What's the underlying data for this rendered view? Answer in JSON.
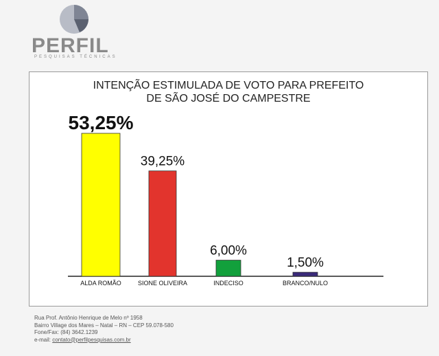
{
  "brand": {
    "name": "PERFIL",
    "tagline": "PESQUISAS TÉCNICAS"
  },
  "chart_data": {
    "type": "bar",
    "title_lines": [
      "INTENÇÃO ESTIMULADA DE VOTO PARA PREFEITO",
      "DE SÃO JOSÉ DO CAMPESTRE"
    ],
    "categories": [
      "ALDA ROMÃO",
      "SIONE OLIVEIRA",
      "INDECISO",
      "BRANCO/NULO"
    ],
    "values": [
      53.25,
      39.25,
      6.0,
      1.5
    ],
    "value_labels": [
      "53,25%",
      "39,25%",
      "6,00%",
      "1,50%"
    ],
    "colors": [
      "#ffff00",
      "#e2342d",
      "#12a03c",
      "#3a2a7a"
    ],
    "ylim": [
      0,
      60
    ],
    "grid": false,
    "legend": "none"
  },
  "footer": {
    "address_line1": "Rua Prof. Antônio Henrique de Melo nº 1958",
    "address_line2": "Bairro Village dos Mares – Natal – RN – CEP 59.078-580",
    "phone": "Fone/Fax: (84) 3642.1239",
    "email_label": "e-mail:",
    "email": "contato@perfilpesquisas.com.br"
  }
}
